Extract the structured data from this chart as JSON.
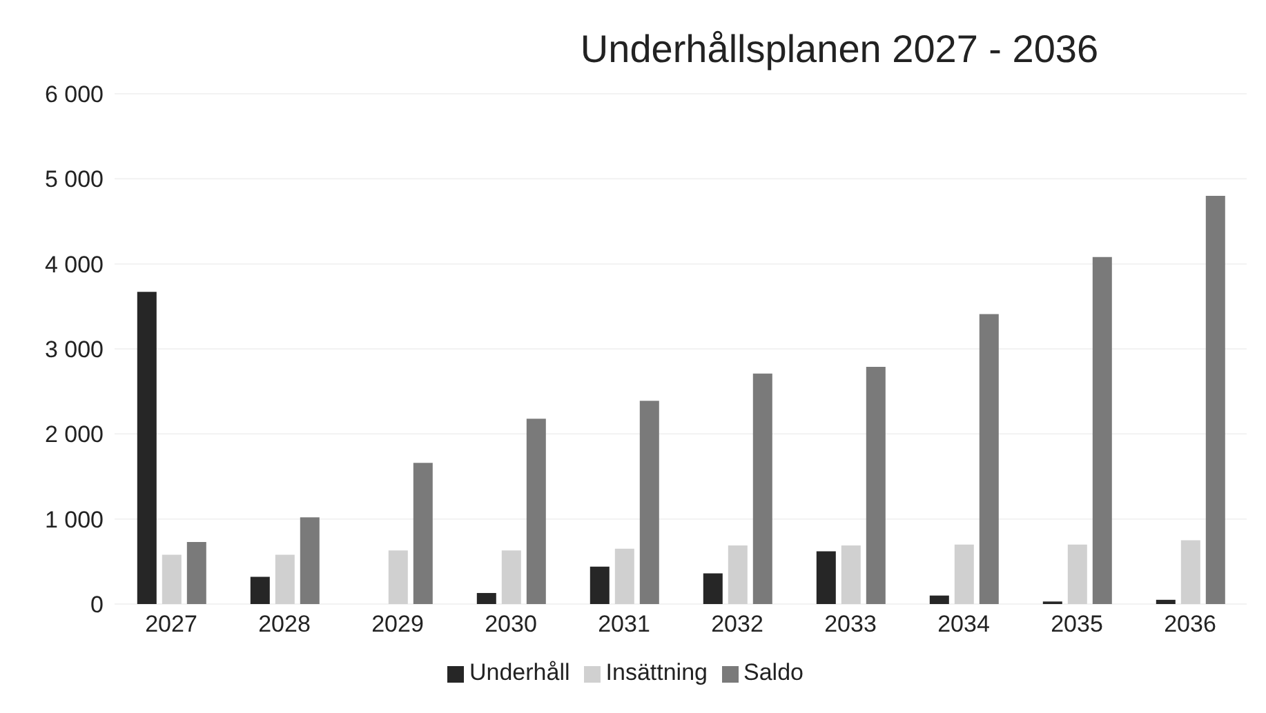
{
  "chart_data": {
    "type": "bar",
    "title": "Underhållsplanen 2027 - 2036",
    "categories": [
      "2027",
      "2028",
      "2029",
      "2030",
      "2031",
      "2032",
      "2033",
      "2034",
      "2035",
      "2036"
    ],
    "series": [
      {
        "name": "Underhåll",
        "color": "#262626",
        "values": [
          3670,
          320,
          0,
          130,
          440,
          360,
          620,
          100,
          30,
          50
        ]
      },
      {
        "name": "Insättning",
        "color": "#d0d0d0",
        "values": [
          580,
          580,
          630,
          630,
          650,
          690,
          690,
          700,
          700,
          750
        ]
      },
      {
        "name": "Saldo",
        "color": "#7a7a7a",
        "values": [
          730,
          1020,
          1660,
          2180,
          2390,
          2710,
          2790,
          3410,
          4080,
          4800
        ]
      }
    ],
    "ylim": [
      0,
      6000
    ],
    "yticks": [
      0,
      {
        "value": 1000,
        "label": "1 000"
      },
      {
        "value": 2000,
        "label": "2 000"
      },
      {
        "value": 3000,
        "label": "3 000"
      },
      {
        "value": 4000,
        "label": "4 000"
      },
      {
        "value": 5000,
        "label": "5 000"
      },
      {
        "value": 6000,
        "label": "6 000"
      }
    ],
    "grid": "y",
    "legend": "bottom"
  }
}
